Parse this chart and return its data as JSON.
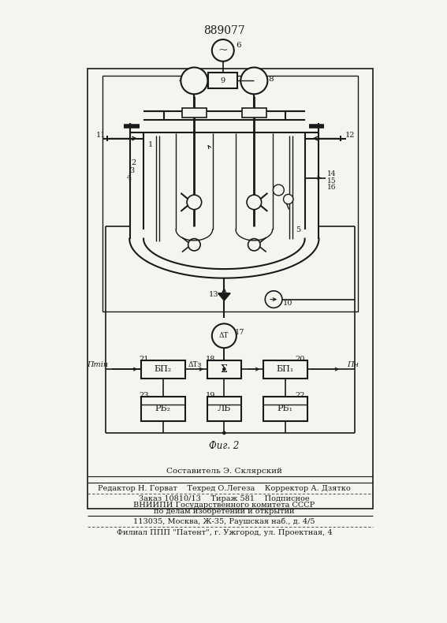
{
  "patent_number": "889077",
  "fig_label": "Фиг. 2",
  "bg_color": "#f5f5f0",
  "line_color": "#1a1a1a",
  "footer_lines": [
    "Составитель Э. Склярский",
    "Редактор Н. Горват    Техред О.Легеза    Корректор А. Дзятко",
    "Заказ 10810/13    Тираж 581    Подписное",
    "ВНИИПИ Государственного комитета СССР",
    "по делам изобретений и открытий",
    "113035, Москва, Ж-35, Раушская наб., д. 4/5",
    "Филиал ППП \"Патент\", г. Ужгород, ул. Проектная, 4"
  ]
}
